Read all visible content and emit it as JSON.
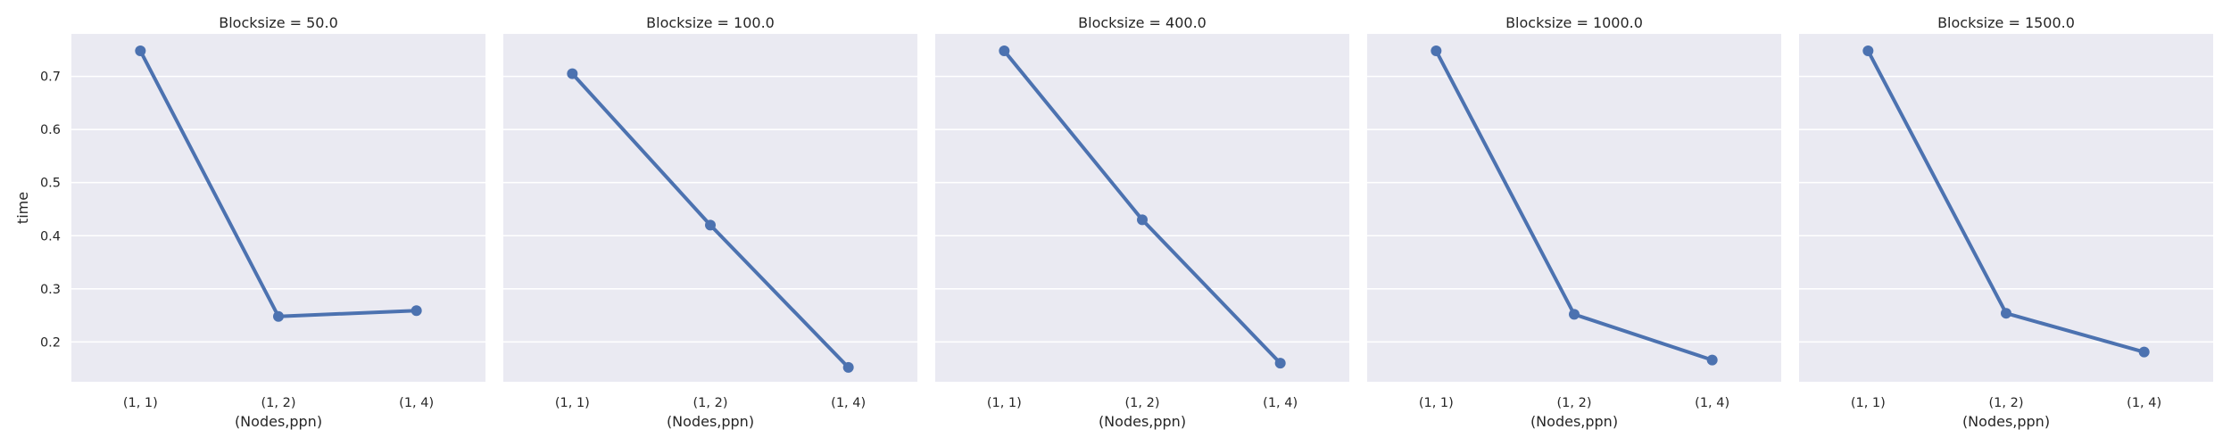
{
  "chart_data": {
    "type": "line",
    "ylabel": "time",
    "xlabel": "(Nodes,ppn)",
    "categories": [
      "(1, 1)",
      "(1, 2)",
      "(1, 4)"
    ],
    "ylim": [
      0.125,
      0.78
    ],
    "yticks": [
      0.2,
      0.3,
      0.4,
      0.5,
      0.6,
      0.7
    ],
    "ytick_labels": [
      "0.2",
      "0.3",
      "0.4",
      "0.5",
      "0.6",
      "0.7"
    ],
    "grid": true,
    "color": "#4c72b0",
    "panels": [
      {
        "title": "Blocksize = 50.0",
        "values": [
          0.748,
          0.248,
          0.259
        ]
      },
      {
        "title": "Blocksize = 100.0",
        "values": [
          0.705,
          0.42,
          0.152
        ]
      },
      {
        "title": "Blocksize = 400.0",
        "values": [
          0.748,
          0.43,
          0.16
        ]
      },
      {
        "title": "Blocksize = 1000.0",
        "values": [
          0.748,
          0.252,
          0.166
        ]
      },
      {
        "title": "Blocksize = 1500.0",
        "values": [
          0.748,
          0.254,
          0.181
        ]
      }
    ]
  }
}
